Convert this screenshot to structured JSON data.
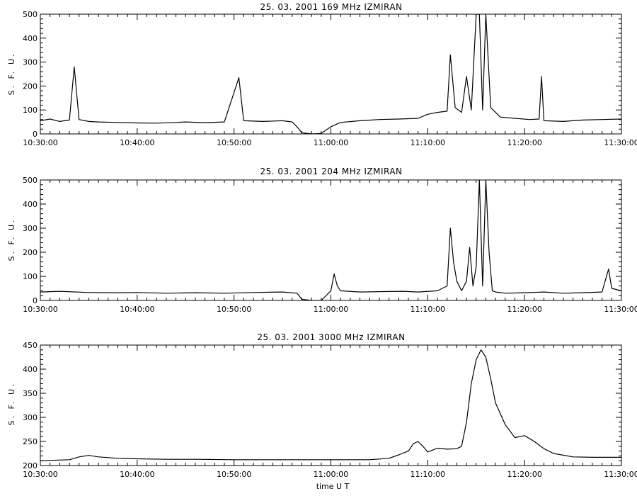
{
  "figure": {
    "xlabel": "time U T"
  },
  "chart_data": [
    {
      "type": "line",
      "title": "25.  03.  2001    169 MHz    IZMIRAN",
      "ylabel": "S. F. U.",
      "xlabel": "",
      "xlim": [
        "10:30:00",
        "11:30:00"
      ],
      "ylim": [
        0,
        500
      ],
      "yticks": [
        0,
        100,
        200,
        300,
        400,
        500
      ],
      "xticks": [
        "10:30:00",
        "10:40:00",
        "10:50:00",
        "11:00:00",
        "11:10:00",
        "11:20:00",
        "11:30:00"
      ],
      "grid": false,
      "series": [
        {
          "color": "#000000",
          "x": [
            "10:30:00",
            "10:31:00",
            "10:32:00",
            "10:33:00",
            "10:33:30",
            "10:34:00",
            "10:35:00",
            "10:36:00",
            "10:38:00",
            "10:40:00",
            "10:42:00",
            "10:44:00",
            "10:45:00",
            "10:47:00",
            "10:49:00",
            "10:50:30",
            "10:51:00",
            "10:53:00",
            "10:55:00",
            "10:56:00",
            "10:56:30",
            "10:57:00",
            "10:58:00",
            "10:59:00",
            "11:00:00",
            "11:01:00",
            "11:03:00",
            "11:05:00",
            "11:07:00",
            "11:09:00",
            "11:10:00",
            "11:11:00",
            "11:12:00",
            "11:12:20",
            "11:12:50",
            "11:13:30",
            "11:14:00",
            "11:14:30",
            "11:15:00",
            "11:15:20",
            "11:15:40",
            "11:16:00",
            "11:16:30",
            "11:17:30",
            "11:19:00",
            "11:20:30",
            "11:21:30",
            "11:21:45",
            "11:22:00",
            "11:24:00",
            "11:26:00",
            "11:28:00",
            "11:30:00"
          ],
          "y": [
            55,
            62,
            52,
            58,
            280,
            60,
            52,
            50,
            48,
            46,
            45,
            48,
            50,
            47,
            50,
            235,
            55,
            52,
            55,
            50,
            30,
            5,
            0,
            2,
            30,
            48,
            55,
            60,
            62,
            65,
            82,
            90,
            95,
            330,
            110,
            90,
            240,
            100,
            500,
            500,
            100,
            500,
            110,
            70,
            65,
            60,
            62,
            240,
            55,
            52,
            58,
            60,
            62
          ]
        }
      ]
    },
    {
      "type": "line",
      "title": "25.  03.  2001    204 MHz    IZMIRAN",
      "ylabel": "S. F. U.",
      "xlabel": "",
      "xlim": [
        "10:30:00",
        "11:30:00"
      ],
      "ylim": [
        0,
        500
      ],
      "yticks": [
        0,
        100,
        200,
        300,
        400,
        500
      ],
      "xticks": [
        "10:30:00",
        "10:40:00",
        "10:50:00",
        "11:00:00",
        "11:10:00",
        "11:20:00",
        "11:30:00"
      ],
      "grid": false,
      "series": [
        {
          "color": "#000000",
          "x": [
            "10:30:00",
            "10:32:00",
            "10:35:00",
            "10:38:00",
            "10:40:00",
            "10:43:00",
            "10:46:00",
            "10:49:00",
            "10:52:00",
            "10:55:00",
            "10:56:30",
            "10:57:00",
            "10:58:00",
            "10:59:00",
            "11:00:00",
            "11:00:20",
            "11:00:40",
            "11:01:00",
            "11:03:00",
            "11:06:00",
            "11:07:30",
            "11:09:00",
            "11:11:00",
            "11:12:00",
            "11:12:20",
            "11:12:40",
            "11:13:00",
            "11:13:30",
            "11:14:00",
            "11:14:20",
            "11:14:40",
            "11:15:00",
            "11:15:20",
            "11:15:40",
            "11:16:00",
            "11:16:20",
            "11:16:40",
            "11:17:00",
            "11:18:00",
            "11:20:00",
            "11:22:00",
            "11:24:00",
            "11:26:00",
            "11:28:00",
            "11:28:40",
            "11:29:00",
            "11:30:00"
          ],
          "y": [
            35,
            38,
            33,
            32,
            33,
            30,
            32,
            30,
            33,
            35,
            30,
            5,
            0,
            0,
            40,
            110,
            60,
            40,
            35,
            37,
            38,
            35,
            40,
            60,
            300,
            160,
            80,
            40,
            80,
            220,
            60,
            140,
            500,
            60,
            500,
            200,
            40,
            35,
            30,
            32,
            35,
            30,
            32,
            35,
            130,
            50,
            40
          ]
        }
      ]
    },
    {
      "type": "line",
      "title": "25.  03.  2001    3000 MHz    IZMIRAN",
      "ylabel": "S. F. U.",
      "xlabel": "",
      "xlim": [
        "10:30:00",
        "11:30:00"
      ],
      "ylim": [
        200,
        450
      ],
      "yticks": [
        200,
        250,
        300,
        350,
        400,
        450
      ],
      "xticks": [
        "10:30:00",
        "10:40:00",
        "10:50:00",
        "11:00:00",
        "11:10:00",
        "11:20:00",
        "11:30:00"
      ],
      "grid": false,
      "series": [
        {
          "color": "#000000",
          "x": [
            "10:30:00",
            "10:33:00",
            "10:34:00",
            "10:35:00",
            "10:36:00",
            "10:38:00",
            "10:40:00",
            "10:43:00",
            "10:46:00",
            "10:50:00",
            "10:55:00",
            "11:00:00",
            "11:04:00",
            "11:06:00",
            "11:07:00",
            "11:08:00",
            "11:08:30",
            "11:09:00",
            "11:09:30",
            "11:10:00",
            "11:10:30",
            "11:11:00",
            "11:12:00",
            "11:13:00",
            "11:13:30",
            "11:14:00",
            "11:14:30",
            "11:15:00",
            "11:15:30",
            "11:16:00",
            "11:16:30",
            "11:17:00",
            "11:18:00",
            "11:19:00",
            "11:20:00",
            "11:21:00",
            "11:22:00",
            "11:23:00",
            "11:25:00",
            "11:27:00",
            "11:30:00"
          ],
          "y": [
            210,
            212,
            218,
            221,
            218,
            215,
            214,
            213,
            213,
            212,
            212,
            212,
            212,
            215,
            222,
            230,
            245,
            250,
            240,
            228,
            232,
            236,
            234,
            235,
            240,
            290,
            370,
            420,
            440,
            425,
            380,
            330,
            285,
            258,
            262,
            250,
            235,
            225,
            218,
            217,
            217
          ]
        }
      ]
    }
  ]
}
